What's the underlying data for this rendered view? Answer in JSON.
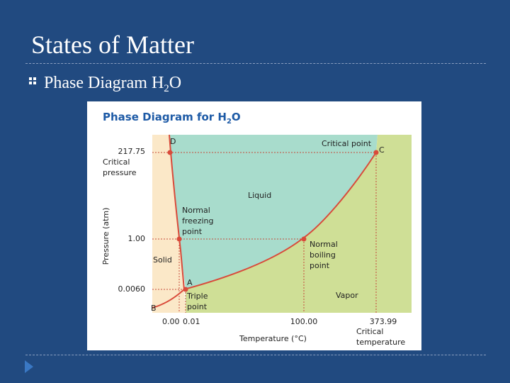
{
  "slide": {
    "title": "States of Matter",
    "bullet": {
      "text": "Phase Diagram H",
      "subscript": "2",
      "suffix": "O"
    }
  },
  "diagram": {
    "title": "Phase Diagram for H",
    "title_subscript": "2",
    "title_suffix": "O",
    "y_axis_label": "Pressure (atm)",
    "x_axis_label": "Temperature (°C)",
    "y_ticks": [
      "217.75",
      "1.00",
      "0.0060"
    ],
    "y_tick_note": [
      "Critical",
      "pressure"
    ],
    "x_ticks": [
      "0.00",
      "0.01",
      "100.00",
      "373.99"
    ],
    "x_tick_note": [
      "Critical",
      "temperature"
    ],
    "regions": {
      "solid": "Solid",
      "liquid": "Liquid",
      "vapor": "Vapor"
    },
    "points": {
      "D": "D",
      "C": "C",
      "A": "A",
      "B": "B",
      "critical_point": "Critical point",
      "normal_freezing": [
        "Normal",
        "freezing",
        "point"
      ],
      "normal_boiling": [
        "Normal",
        "boiling",
        "point"
      ],
      "triple": [
        "Triple",
        "point"
      ]
    },
    "colors": {
      "solid": "#fbe8c8",
      "liquid": "#a8dccc",
      "vapor": "#cfdf96",
      "curve": "#d94a3a",
      "title": "#1d5aa6",
      "background": "#214a80"
    }
  }
}
